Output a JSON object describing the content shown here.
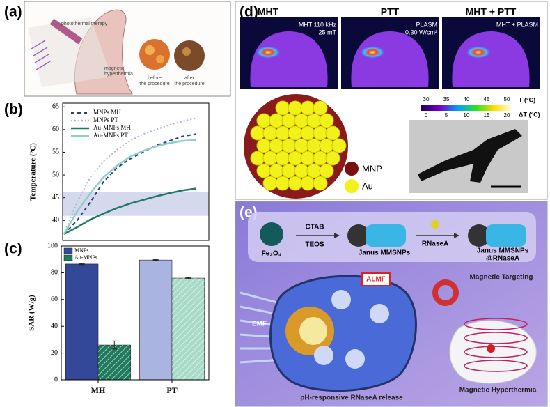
{
  "panels": {
    "a": {
      "label": "(a)",
      "photothermal": "photothermal therapy",
      "magnetic": [
        "magnetic",
        "hyperthermia"
      ],
      "before": [
        "before",
        "the procedure"
      ],
      "after": [
        "after",
        "the procedure"
      ]
    },
    "b": {
      "label": "(b)"
    },
    "c": {
      "label": "(c)"
    },
    "d": {
      "label": "(d)",
      "titles": [
        "MHT",
        "PTT",
        "MHT + PTT"
      ],
      "image_texts": [
        [
          "MHT 110 kHz",
          "25 mT"
        ],
        [
          "PLASM",
          "0.30 W/cm²"
        ],
        [
          "MHT + PLASM"
        ]
      ],
      "colorbar": {
        "t_label": "T (°C)",
        "t_ticks": [
          30,
          35,
          40,
          45,
          50
        ],
        "dt_label": "ΔT (°C)",
        "dt_ticks": [
          0,
          5,
          10,
          15,
          20
        ]
      },
      "legend": [
        "MNP",
        "Au"
      ]
    },
    "e": {
      "label": "(e)",
      "fe3o4": "Fe₃O₄",
      "ctab": "CTAB",
      "teos": "TEOS",
      "janus": "Janus MMSNPs",
      "rnasea": "RNaseA",
      "janus_rnase": [
        "Janus MMSNPs",
        "@RNaseA"
      ],
      "almf": "ALMF",
      "targeting": "Magnetic Targeting",
      "emf": "EMF",
      "release": "pH-responsive RNaseA release",
      "hyperthermia": "Magnetic Hyperthermia"
    }
  },
  "chart_data": [
    {
      "type": "line",
      "y_label": "Temperature (ºC)",
      "x": [
        0,
        1,
        2,
        3,
        4,
        5,
        6,
        7,
        8,
        9,
        10
      ],
      "xlim": [
        -0.1,
        11
      ],
      "ylim": [
        35.6,
        65.8
      ],
      "yticks": [
        40,
        45,
        50,
        55,
        60,
        65
      ],
      "shaded_range": [
        41,
        46.3
      ],
      "series": [
        {
          "name": "MNPs MH",
          "color": "#2b3f86",
          "style": "dashed",
          "values": [
            37,
            40,
            44,
            48.5,
            51.5,
            53.5,
            55,
            56.5,
            57.5,
            58.5,
            59
          ]
        },
        {
          "name": "MNPs PT",
          "color": "#a9b4e2",
          "style": "dotted",
          "values": [
            37,
            44,
            49.5,
            53,
            55.5,
            57.5,
            59,
            60,
            61,
            61.8,
            62.5
          ]
        },
        {
          "name": "Au-MNPs MH",
          "color": "#1f7a66",
          "style": "solid",
          "values": [
            37,
            38.5,
            40.2,
            41.5,
            42.7,
            43.7,
            44.5,
            45.3,
            46,
            46.6,
            47
          ]
        },
        {
          "name": "Au-MNPs PT",
          "color": "#8fd0c0",
          "style": "solid",
          "values": [
            37,
            42,
            46,
            49.5,
            52,
            54,
            55.3,
            56.3,
            57,
            57.5,
            57.7
          ]
        }
      ]
    },
    {
      "type": "bar",
      "y_label": "SAR (W/g)",
      "categories": [
        "MH",
        "PT"
      ],
      "ylim": [
        0,
        100
      ],
      "yticks": [
        0,
        20,
        40,
        60,
        80,
        100
      ],
      "series": [
        {
          "name": "MNPs",
          "color": "#34489a",
          "colors": [
            "#34489a",
            "#aab4e0"
          ],
          "hatched": false,
          "values": [
            86.5,
            89.5
          ],
          "errors": [
            0.5,
            0.4
          ]
        },
        {
          "name": "Au-MNPs",
          "color": "#1f7a5e",
          "colors": [
            "#1f7a5e",
            "#a8dac8"
          ],
          "hatched": true,
          "values": [
            26,
            76
          ],
          "errors": [
            3,
            0.4
          ]
        }
      ]
    }
  ]
}
